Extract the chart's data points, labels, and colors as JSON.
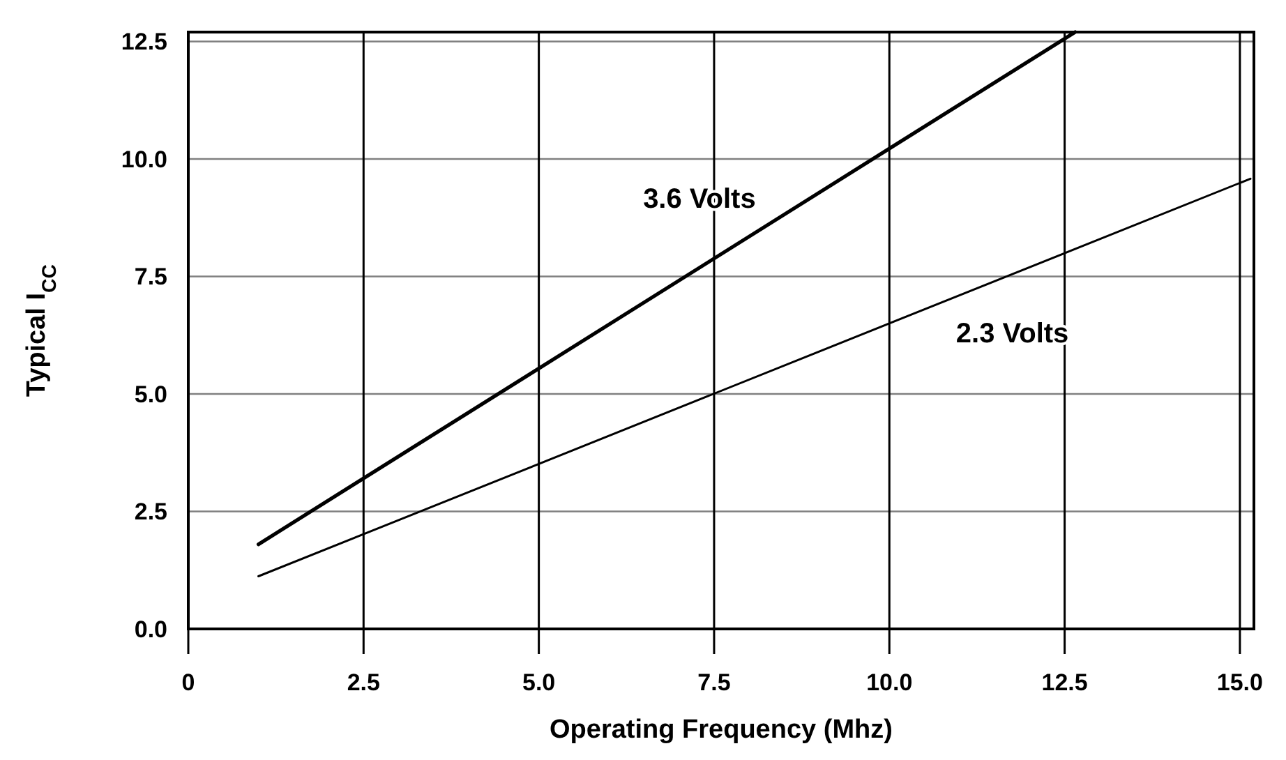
{
  "chart_data": {
    "type": "line",
    "xlabel": "Operating Frequency (Mhz)",
    "ylabel": "Typical I$_{CC}$",
    "xlim": [
      0,
      15.2
    ],
    "xticks": [
      0,
      {
        "value": 2.5,
        "label": "2.5"
      },
      {
        "value": 5,
        "label": "5.0"
      },
      {
        "value": 7.5,
        "label": "7.5"
      },
      {
        "value": 10,
        "label": "10.0"
      },
      {
        "value": 12.5,
        "label": "12.5"
      },
      {
        "value": 15,
        "label": "15.0"
      }
    ],
    "ylim": [
      0,
      12.7
    ],
    "yticks": [
      {
        "value": 0,
        "label": "0.0"
      },
      {
        "value": 2.5,
        "label": "2.5"
      },
      {
        "value": 5,
        "label": "5.0"
      },
      {
        "value": 7.5,
        "label": "7.5"
      },
      {
        "value": 10,
        "label": "10.0"
      },
      {
        "value": 12.5,
        "label": "12.5"
      }
    ],
    "grid": true,
    "marker": "none",
    "line_style": "solid",
    "series": [
      {
        "name": "3.6 Volts",
        "color": "#000000",
        "x": [
          1.0,
          12.65
        ],
        "values": [
          1.8,
          12.7
        ]
      },
      {
        "name": "2.3 Volts",
        "color": "#000000",
        "x": [
          1.0,
          15.15
        ],
        "values": [
          1.12,
          9.58
        ]
      }
    ]
  }
}
